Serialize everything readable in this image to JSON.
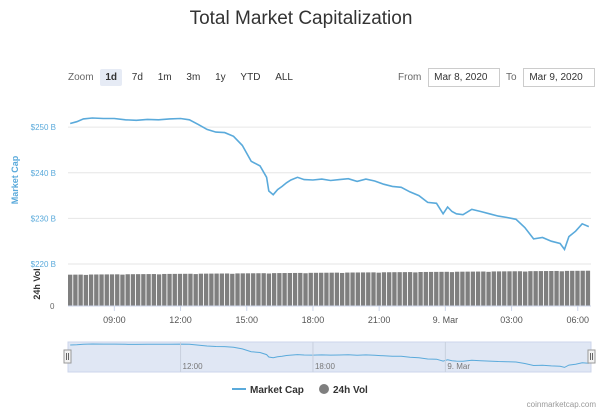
{
  "title": "Total Market Capitalization",
  "toolbar": {
    "zoom_label": "Zoom",
    "zoom_buttons": [
      "1d",
      "7d",
      "1m",
      "3m",
      "1y",
      "YTD",
      "ALL"
    ],
    "selected": "1d",
    "from_label": "From",
    "from_value": "Mar 8, 2020",
    "to_label": "To",
    "to_value": "Mar 9, 2020"
  },
  "credit": "coinmarketcap.com",
  "colors": {
    "market_cap": "#5aaadb",
    "volume": "#7f7f7f",
    "navigator_fill": "#dbe3f2"
  },
  "chart_data": {
    "type": "line",
    "xlabel": "",
    "ylabel": "Market Cap",
    "y2label": "24h Vol",
    "ylim": [
      220,
      252
    ],
    "yticks": [
      "$220 B",
      "$230 B",
      "$240 B",
      "$250 B"
    ],
    "ytick_values": [
      220,
      230,
      240,
      250
    ],
    "vol_zero_label": "0",
    "x_ticks": [
      "09:00",
      "12:00",
      "15:00",
      "18:00",
      "21:00",
      "9. Mar",
      "03:00",
      "06:00"
    ],
    "x_tick_hours": [
      9,
      12,
      15,
      18,
      21,
      24,
      27,
      30
    ],
    "xlim_hours": [
      6.9,
      30.6
    ],
    "nav_ticks": [
      "12:00",
      "18:00",
      "9. Mar"
    ],
    "nav_tick_hours": [
      12,
      18,
      24
    ],
    "legend": [
      "Market Cap",
      "24h Vol"
    ],
    "legend_position": "bottom-center",
    "grid": true,
    "series": [
      {
        "name": "Market Cap",
        "x_hours": [
          7.0,
          7.3,
          7.6,
          8.0,
          8.5,
          9.0,
          9.5,
          10.0,
          10.5,
          11.0,
          11.5,
          12.0,
          12.4,
          12.8,
          13.2,
          13.6,
          14.0,
          14.4,
          14.8,
          15.2,
          15.6,
          15.9,
          16.0,
          16.2,
          16.4,
          16.6,
          16.8,
          17.0,
          17.3,
          17.6,
          18.0,
          18.4,
          18.8,
          19.2,
          19.6,
          20.0,
          20.4,
          20.8,
          21.2,
          21.6,
          22.0,
          22.4,
          22.8,
          23.2,
          23.6,
          23.9,
          24.1,
          24.3,
          24.5,
          24.8,
          25.2,
          25.6,
          26.0,
          26.4,
          26.8,
          27.2,
          27.6,
          28.0,
          28.4,
          28.8,
          29.2,
          29.4,
          29.6,
          29.9,
          30.2,
          30.5
        ],
        "values": [
          250.8,
          251.2,
          251.8,
          252.0,
          251.9,
          251.9,
          251.6,
          251.5,
          251.7,
          251.6,
          251.8,
          251.9,
          251.6,
          250.6,
          249.5,
          248.9,
          248.8,
          248.0,
          246.0,
          242.5,
          241.5,
          239.0,
          236.0,
          235.2,
          236.3,
          237.0,
          237.8,
          238.4,
          239.0,
          238.5,
          238.4,
          238.6,
          238.3,
          238.5,
          238.7,
          238.1,
          238.6,
          238.2,
          237.5,
          237.0,
          236.8,
          235.8,
          235.0,
          233.5,
          233.3,
          231.0,
          232.5,
          231.5,
          231.0,
          230.8,
          232.0,
          231.5,
          231.0,
          230.5,
          230.2,
          229.8,
          228.0,
          225.5,
          225.8,
          225.0,
          224.5,
          223.2,
          226.0,
          227.2,
          228.8,
          228.2
        ]
      },
      {
        "name": "24h Vol",
        "bar_count": 100,
        "values_relative": [
          0.87,
          0.98
        ]
      }
    ]
  }
}
